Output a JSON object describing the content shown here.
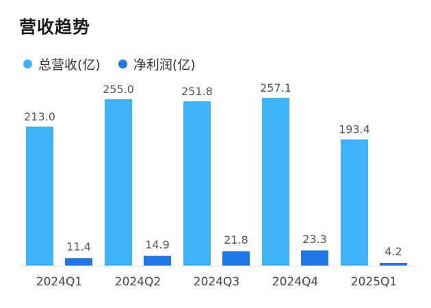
{
  "chart_data": {
    "type": "bar",
    "title": "营收趋势",
    "categories": [
      "2024Q1",
      "2024Q2",
      "2024Q3",
      "2024Q4",
      "2025Q1"
    ],
    "series": [
      {
        "name": "总营收(亿)",
        "color": "#3cb4f7",
        "values": [
          213.0,
          255.0,
          251.8,
          257.1,
          193.4
        ],
        "labels": [
          "213.0",
          "255.0",
          "251.8",
          "257.1",
          "193.4"
        ]
      },
      {
        "name": "净利润(亿)",
        "color": "#1f78e6",
        "values": [
          11.4,
          14.9,
          21.8,
          23.3,
          4.2
        ],
        "labels": [
          "11.4",
          "14.9",
          "21.8",
          "23.3",
          "4.2"
        ]
      }
    ],
    "xlabel": "",
    "ylabel": "",
    "ylim": [
      0,
      257.1
    ],
    "grid": false,
    "legend_position": "top-left"
  }
}
